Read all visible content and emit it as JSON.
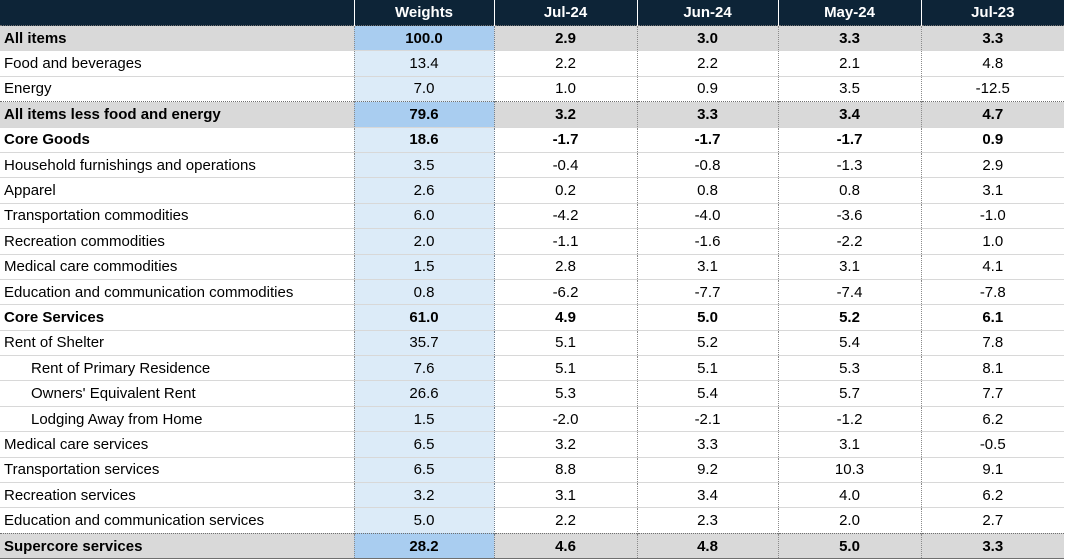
{
  "table": {
    "columns": [
      "",
      "Weights",
      "Jul-24",
      "Jun-24",
      "May-24",
      "Jul-23"
    ],
    "rows": [
      {
        "label": "All items",
        "weight": "100.0",
        "jul24": "2.9",
        "jun24": "3.0",
        "may24": "3.3",
        "jul23": "3.3",
        "style": "shaded-bold",
        "indent": false
      },
      {
        "label": "Food and beverages",
        "weight": "13.4",
        "jul24": "2.2",
        "jun24": "2.2",
        "may24": "2.1",
        "jul23": "4.8",
        "style": "normal",
        "indent": false
      },
      {
        "label": "Energy",
        "weight": "7.0",
        "jul24": "1.0",
        "jun24": "0.9",
        "may24": "3.5",
        "jul23": "-12.5",
        "style": "normal",
        "indent": false
      },
      {
        "label": "All items less food and energy",
        "weight": "79.6",
        "jul24": "3.2",
        "jun24": "3.3",
        "may24": "3.4",
        "jul23": "4.7",
        "style": "shaded-bold",
        "indent": false
      },
      {
        "label": "Core Goods",
        "weight": "18.6",
        "jul24": "-1.7",
        "jun24": "-1.7",
        "may24": "-1.7",
        "jul23": "0.9",
        "style": "bold",
        "indent": false
      },
      {
        "label": "Household furnishings and operations",
        "weight": "3.5",
        "jul24": "-0.4",
        "jun24": "-0.8",
        "may24": "-1.3",
        "jul23": "2.9",
        "style": "normal",
        "indent": false
      },
      {
        "label": "Apparel",
        "weight": "2.6",
        "jul24": "0.2",
        "jun24": "0.8",
        "may24": "0.8",
        "jul23": "3.1",
        "style": "normal",
        "indent": false
      },
      {
        "label": "Transportation commodities",
        "weight": "6.0",
        "jul24": "-4.2",
        "jun24": "-4.0",
        "may24": "-3.6",
        "jul23": "-1.0",
        "style": "normal",
        "indent": false
      },
      {
        "label": "Recreation commodities",
        "weight": "2.0",
        "jul24": "-1.1",
        "jun24": "-1.6",
        "may24": "-2.2",
        "jul23": "1.0",
        "style": "normal",
        "indent": false
      },
      {
        "label": "Medical care commodities",
        "weight": "1.5",
        "jul24": "2.8",
        "jun24": "3.1",
        "may24": "3.1",
        "jul23": "4.1",
        "style": "normal",
        "indent": false
      },
      {
        "label": "Education and communication commodities",
        "weight": "0.8",
        "jul24": "-6.2",
        "jun24": "-7.7",
        "may24": "-7.4",
        "jul23": "-7.8",
        "style": "normal",
        "indent": false
      },
      {
        "label": "Core Services",
        "weight": "61.0",
        "jul24": "4.9",
        "jun24": "5.0",
        "may24": "5.2",
        "jul23": "6.1",
        "style": "bold",
        "indent": false
      },
      {
        "label": "Rent of Shelter",
        "weight": "35.7",
        "jul24": "5.1",
        "jun24": "5.2",
        "may24": "5.4",
        "jul23": "7.8",
        "style": "normal",
        "indent": false
      },
      {
        "label": "Rent of Primary Residence",
        "weight": "7.6",
        "jul24": "5.1",
        "jun24": "5.1",
        "may24": "5.3",
        "jul23": "8.1",
        "style": "normal",
        "indent": true
      },
      {
        "label": "Owners' Equivalent Rent",
        "weight": "26.6",
        "jul24": "5.3",
        "jun24": "5.4",
        "may24": "5.7",
        "jul23": "7.7",
        "style": "normal",
        "indent": true
      },
      {
        "label": "Lodging Away from Home",
        "weight": "1.5",
        "jul24": "-2.0",
        "jun24": "-2.1",
        "may24": "-1.2",
        "jul23": "6.2",
        "style": "normal",
        "indent": true
      },
      {
        "label": "Medical care services",
        "weight": "6.5",
        "jul24": "3.2",
        "jun24": "3.3",
        "may24": "3.1",
        "jul23": "-0.5",
        "style": "normal",
        "indent": false
      },
      {
        "label": "Transportation services",
        "weight": "6.5",
        "jul24": "8.8",
        "jun24": "9.2",
        "may24": "10.3",
        "jul23": "9.1",
        "style": "normal",
        "indent": false
      },
      {
        "label": "Recreation services",
        "weight": "3.2",
        "jul24": "3.1",
        "jun24": "3.4",
        "may24": "4.0",
        "jul23": "6.2",
        "style": "normal",
        "indent": false
      },
      {
        "label": "Education and communication services",
        "weight": "5.0",
        "jul24": "2.2",
        "jun24": "2.3",
        "may24": "2.0",
        "jul23": "2.7",
        "style": "normal",
        "indent": false
      },
      {
        "label": "Supercore services",
        "weight": "28.2",
        "jul24": "4.6",
        "jun24": "4.8",
        "may24": "5.0",
        "jul23": "3.3",
        "style": "shaded-bold",
        "indent": false
      }
    ]
  },
  "colors": {
    "header_bg": "#0d2437",
    "weights_bg": "#dcebf8",
    "weights_shaded_bg": "#a9cdf0",
    "shaded_row_bg": "#d9d9d9"
  }
}
